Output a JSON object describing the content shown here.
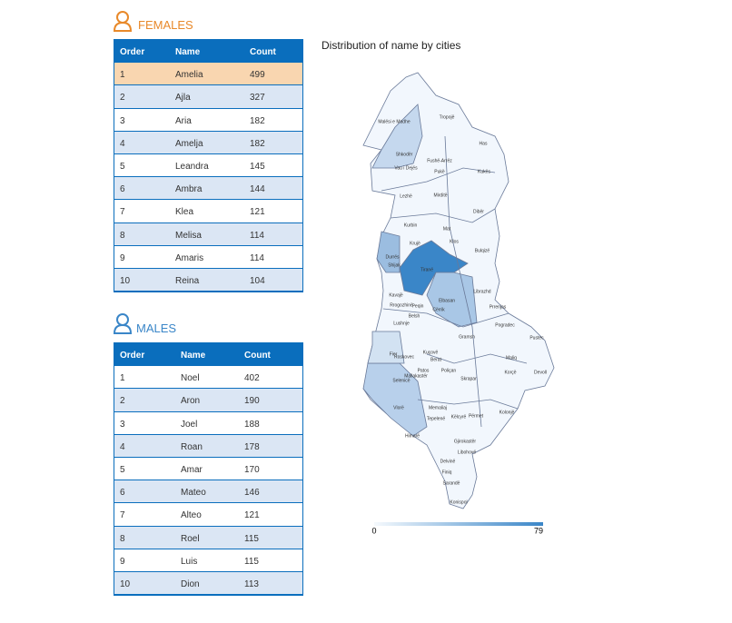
{
  "females": {
    "title": "FEMALES",
    "columns": [
      "Order",
      "Name",
      "Count"
    ],
    "rows": [
      [
        "1",
        "Amelia",
        "499"
      ],
      [
        "2",
        "Ajla",
        "327"
      ],
      [
        "3",
        "Aria",
        "182"
      ],
      [
        "4",
        "Amelja",
        "182"
      ],
      [
        "5",
        "Leandra",
        "145"
      ],
      [
        "6",
        "Ambra",
        "144"
      ],
      [
        "7",
        "Klea",
        "121"
      ],
      [
        "8",
        "Melisa",
        "114"
      ],
      [
        "9",
        "Amaris",
        "114"
      ],
      [
        "10",
        "Reina",
        "104"
      ]
    ]
  },
  "males": {
    "title": "MALES",
    "columns": [
      "Order",
      "Name",
      "Count"
    ],
    "rows": [
      [
        "1",
        "Noel",
        "402"
      ],
      [
        "2",
        "Aron",
        "190"
      ],
      [
        "3",
        "Joel",
        "188"
      ],
      [
        "4",
        "Roan",
        "178"
      ],
      [
        "5",
        "Amar",
        "170"
      ],
      [
        "6",
        "Mateo",
        "146"
      ],
      [
        "7",
        "Alteo",
        "121"
      ],
      [
        "8",
        "Roel",
        "115"
      ],
      [
        "9",
        "Luis",
        "115"
      ],
      [
        "10",
        "Dion",
        "113"
      ]
    ]
  },
  "map": {
    "title": "Distribution of name by cities",
    "cities": [
      "Malësi e Madhe",
      "Tropojë",
      "Has",
      "Shkodër",
      "Vau i Dejës",
      "Fushë-Arrëz",
      "Pukë",
      "Kukës",
      "Lezhë",
      "Mirditë",
      "Dibër",
      "Kurbin",
      "Mat",
      "Krujë",
      "Klos",
      "Bulqizë",
      "Durrës",
      "Shijak",
      "Tiranë",
      "Librazhd",
      "Kavajë",
      "Rrogozhinë",
      "Peqin",
      "Elbasan",
      "Lushnje",
      "Cërrik",
      "Belsh",
      "Prrenjas",
      "Pogradec",
      "Gramsh",
      "Pustec",
      "Maliq",
      "Fier",
      "Roskovec",
      "Kuçovë",
      "Berat",
      "Patos",
      "Poliçan",
      "Skrapar",
      "Korçë",
      "Devoll",
      "Mallakastër",
      "Selenicë",
      "Vlorë",
      "Memaliaj",
      "Tepelenë",
      "Këlcyrë",
      "Përmet",
      "Kolonjë",
      "Himarë",
      "Gjirokastër",
      "Libohovë",
      "Delvinë",
      "Finiq",
      "Sarandë",
      "Konispol"
    ],
    "legend": {
      "min": "0",
      "max": "79"
    }
  }
}
